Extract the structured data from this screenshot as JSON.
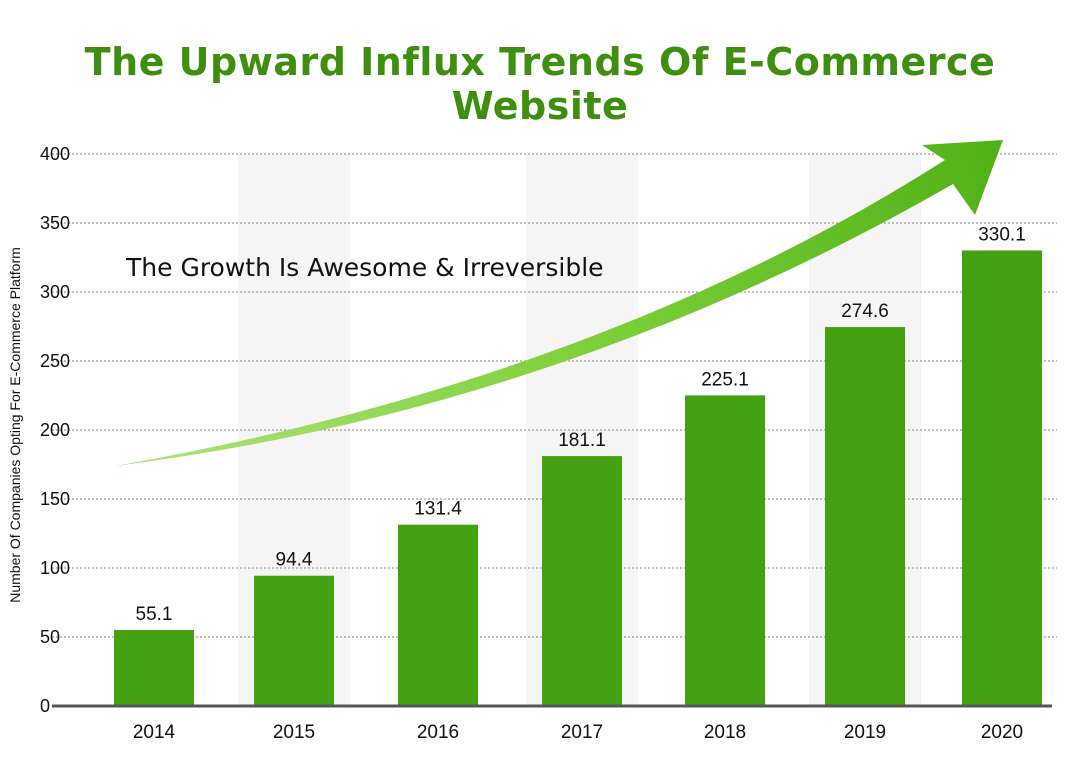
{
  "chart_data": {
    "type": "bar",
    "title": "The Upward Influx Trends Of E-Commerce Website",
    "xlabel": "",
    "ylabel": "Number Of Companies Opting For E-Commerce Platform",
    "categories": [
      "2014",
      "2015",
      "2016",
      "2017",
      "2018",
      "2019",
      "2020"
    ],
    "values": [
      55.1,
      94.4,
      131.4,
      181.1,
      225.1,
      274.6,
      330.1
    ],
    "value_labels": [
      "55.1",
      "94.4",
      "131.4",
      "181.1",
      "225.1",
      "274.6",
      "330.1"
    ],
    "ylim": [
      0,
      400
    ],
    "yticks": [
      "0",
      "50",
      "100",
      "150",
      "200",
      "250",
      "300",
      "350",
      "400"
    ],
    "grid": true,
    "annotation": "The Growth Is Awesome & Irreversible",
    "colors": {
      "bar": "#44a112",
      "title": "#3e8e0f",
      "arrow": "#5cbf1e",
      "band": "#f5f5f5",
      "grid": "#9a9a9a",
      "axis": "#555555"
    }
  }
}
